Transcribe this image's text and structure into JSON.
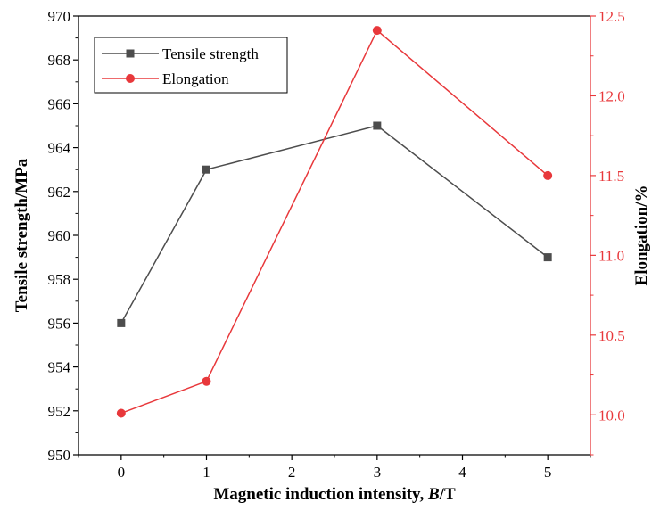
{
  "chart_data": {
    "type": "line",
    "xlabel_main": "Magnetic induction intensity, ",
    "xlabel_var": "B",
    "xlabel_unit": "/T",
    "ylabel_left": "Tensile strength/MPa",
    "ylabel_right": "Elongation/%",
    "xlim": [
      -0.5,
      5.5
    ],
    "xticks": [
      0,
      1,
      2,
      3,
      4,
      5
    ],
    "ylim_left": [
      950,
      970
    ],
    "yticks_left": [
      950,
      952,
      954,
      956,
      958,
      960,
      962,
      964,
      966,
      968,
      970
    ],
    "ylim_right": [
      9.75,
      12.5
    ],
    "yticks_right": [
      10.0,
      10.5,
      11.0,
      11.5,
      12.0,
      12.5
    ],
    "right_axis_color": "#e8383b",
    "legend_position": "top-left",
    "series": [
      {
        "name": "Tensile strength",
        "axis": "left",
        "marker": "square",
        "color": "#4d4d4d",
        "x": [
          0,
          1,
          3,
          5
        ],
        "values": [
          956,
          963,
          965,
          959
        ]
      },
      {
        "name": "Elongation",
        "axis": "right",
        "marker": "circle",
        "color": "#e8383b",
        "x": [
          0,
          1,
          3,
          5
        ],
        "values": [
          10.01,
          10.21,
          12.41,
          11.5
        ]
      }
    ]
  }
}
